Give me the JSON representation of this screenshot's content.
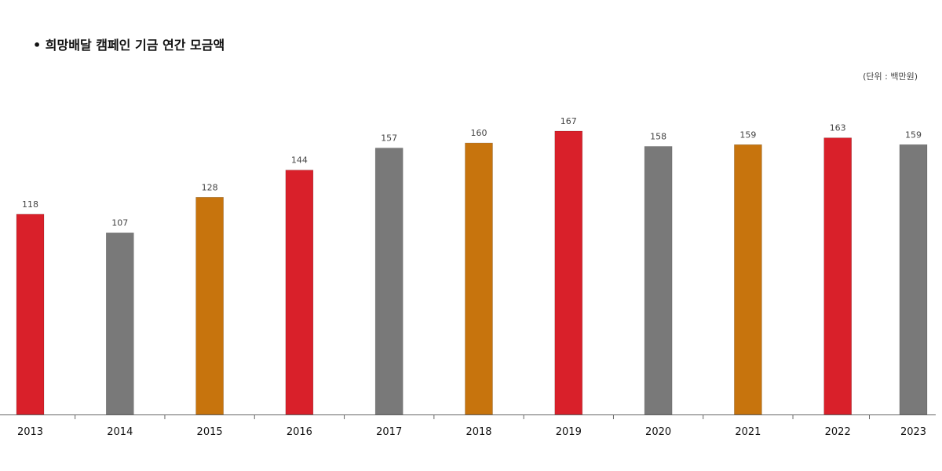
{
  "title": "• 희망배달 캠페인 기금 연간 모금액",
  "unit_note": "(단위 : 백만원)",
  "colors": {
    "red": "#d9202a",
    "gray": "#797979",
    "orange": "#c7740d",
    "axis": "#666666"
  },
  "chart_data": {
    "type": "bar",
    "title": "희망배달 캠페인 기금 연간 모금액",
    "xlabel": "",
    "ylabel": "",
    "categories": [
      "2013",
      "2014",
      "2015",
      "2016",
      "2017",
      "2018",
      "2019",
      "2020",
      "2021",
      "2022",
      "2023"
    ],
    "values": [
      118,
      107,
      128,
      144,
      157,
      160,
      167,
      158,
      159,
      163,
      159
    ],
    "value_labels": [
      "118",
      "107",
      "128",
      "144",
      "157",
      "160",
      "167",
      "158",
      "159",
      "163",
      "159"
    ],
    "bar_colors": [
      "red",
      "gray",
      "orange",
      "red",
      "gray",
      "orange",
      "red",
      "gray",
      "orange",
      "red",
      "gray"
    ],
    "ylim": [
      0,
      167
    ],
    "grid": false,
    "legend": "none"
  }
}
